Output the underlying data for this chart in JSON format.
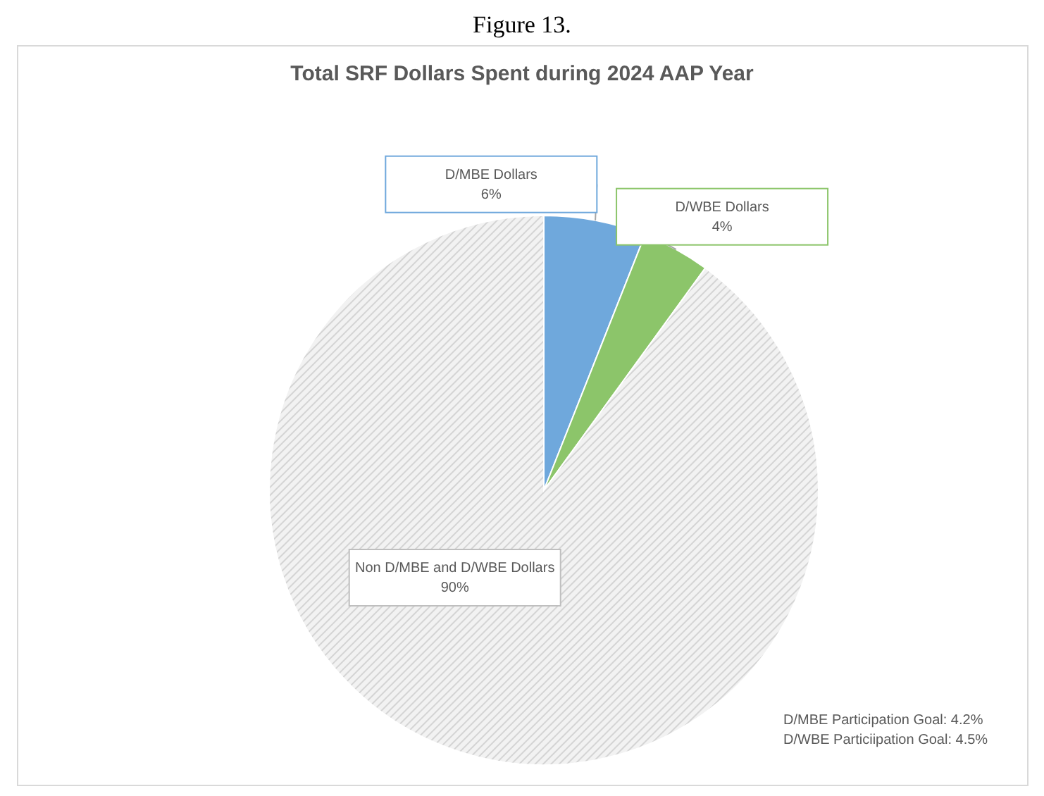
{
  "chart_data": {
    "type": "pie",
    "title": "Total SRF Dollars Spent during 2024 AAP Year",
    "categories": [
      "D/MBE Dollars",
      "D/WBE Dollars",
      "Non D/MBE and D/WBE Dollars"
    ],
    "values": [
      6,
      4,
      90
    ],
    "colors": [
      "#6fa8dc",
      "#8cc56a",
      "#d4d4d4"
    ],
    "value_labels": [
      "6%",
      "4%",
      "90%"
    ],
    "annotations": [
      "Figure 13.",
      "D/MBE Participation Goal: 4.2%",
      "D/WBE Particiipation Goal: 4.5%"
    ]
  }
}
